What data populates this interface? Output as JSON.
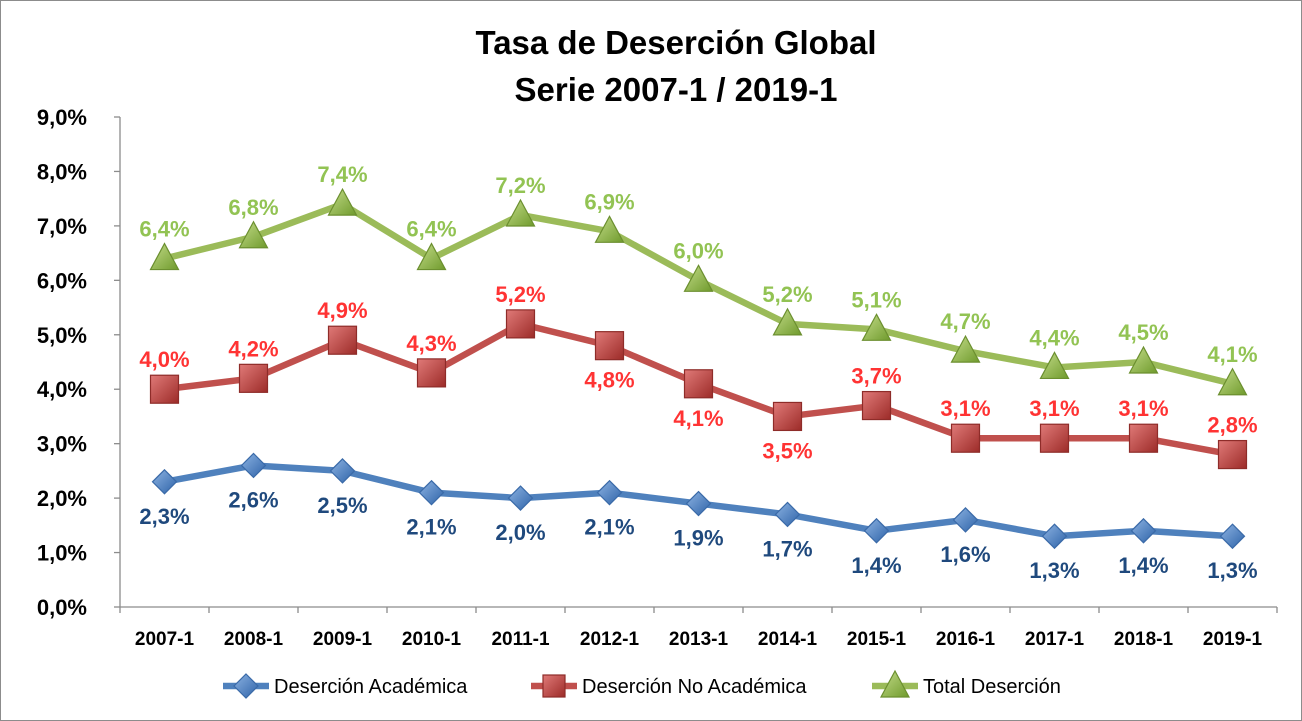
{
  "chart_data": {
    "type": "line",
    "title": [
      "Tasa de Deserción Global",
      "Serie 2007-1 / 2019-1"
    ],
    "xlabel": "",
    "ylabel": "",
    "categories": [
      "2007-1",
      "2008-1",
      "2009-1",
      "2010-1",
      "2011-1",
      "2012-1",
      "2013-1",
      "2014-1",
      "2015-1",
      "2016-1",
      "2017-1",
      "2018-1",
      "2019-1"
    ],
    "ylim": [
      0,
      9
    ],
    "yticks": [
      "0,0%",
      "1,0%",
      "2,0%",
      "3,0%",
      "4,0%",
      "5,0%",
      "6,0%",
      "7,0%",
      "8,0%",
      "9,0%"
    ],
    "grid": false,
    "legend_position": "bottom",
    "series": [
      {
        "name": "Deserción Académica",
        "marker": "diamond",
        "color": "#4f81bd",
        "label_color": "#1f497d",
        "values": [
          2.3,
          2.6,
          2.5,
          2.1,
          2.0,
          2.1,
          1.9,
          1.7,
          1.4,
          1.6,
          1.3,
          1.4,
          1.3
        ],
        "labels": [
          "2,3%",
          "2,6%",
          "2,5%",
          "2,1%",
          "2,0%",
          "2,1%",
          "1,9%",
          "1,7%",
          "1,4%",
          "1,6%",
          "1,3%",
          "1,4%",
          "1,3%"
        ]
      },
      {
        "name": "Deserción No Académica",
        "marker": "square",
        "color": "#c0504d",
        "label_color": "#ff3333",
        "values": [
          4.0,
          4.2,
          4.9,
          4.3,
          5.2,
          4.8,
          4.1,
          3.5,
          3.7,
          3.1,
          3.1,
          3.1,
          2.8
        ],
        "labels": [
          "4,0%",
          "4,2%",
          "4,9%",
          "4,3%",
          "5,2%",
          "4,8%",
          "4,1%",
          "3,5%",
          "3,7%",
          "3,1%",
          "3,1%",
          "3,1%",
          "2,8%"
        ]
      },
      {
        "name": "Total Deserción",
        "marker": "triangle",
        "color": "#9bbb59",
        "label_color": "#92c353",
        "values": [
          6.4,
          6.8,
          7.4,
          6.4,
          7.2,
          6.9,
          6.0,
          5.2,
          5.1,
          4.7,
          4.4,
          4.5,
          4.1
        ],
        "labels": [
          "6,4%",
          "6,8%",
          "7,4%",
          "6,4%",
          "7,2%",
          "6,9%",
          "6,0%",
          "5,2%",
          "5,1%",
          "4,7%",
          "4,4%",
          "4,5%",
          "4,1%"
        ]
      }
    ]
  }
}
